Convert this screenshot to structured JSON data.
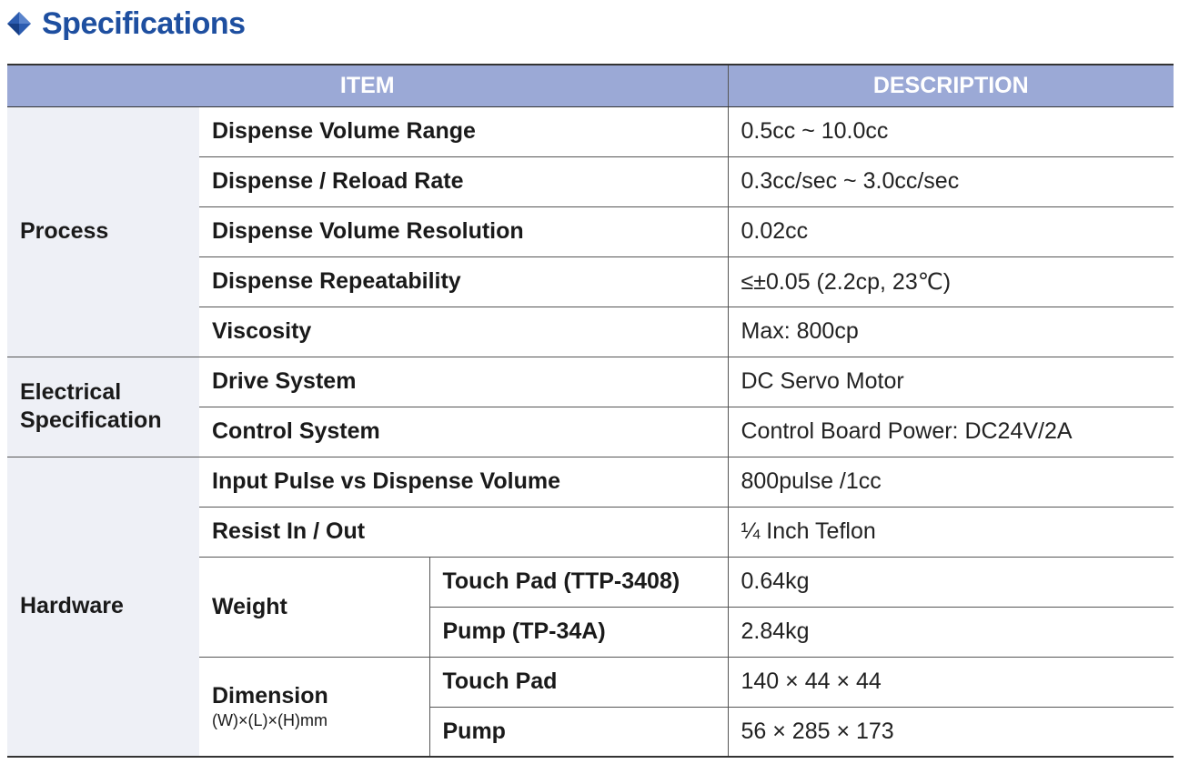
{
  "heading": {
    "title": "Specifications",
    "icon": "diamond-icon",
    "accent_color": "#1e4fa0"
  },
  "table": {
    "header_bg": "#9ba9d6",
    "columns": [
      "ITEM",
      "DESCRIPTION"
    ],
    "groups": [
      {
        "label": "Process",
        "rows": [
          {
            "item": "Dispense Volume Range",
            "desc": "0.5cc ~ 10.0cc"
          },
          {
            "item": "Dispense / Reload Rate",
            "desc": "0.3cc/sec ~ 3.0cc/sec"
          },
          {
            "item": "Dispense Volume Resolution",
            "desc": "0.02cc"
          },
          {
            "item": "Dispense Repeatability",
            "desc": "≤±0.05 (2.2cp, 23℃)"
          },
          {
            "item": "Viscosity",
            "desc": "Max: 800cp"
          }
        ]
      },
      {
        "label_line1": "Electrical",
        "label_line2": "Specification",
        "rows": [
          {
            "item": "Drive System",
            "desc": "DC Servo Motor"
          },
          {
            "item": "Control System",
            "desc": "Control Board Power: DC24V/2A"
          }
        ]
      },
      {
        "label": "Hardware",
        "rows": [
          {
            "item": "Input Pulse vs Dispense Volume",
            "desc": "800pulse /1cc"
          },
          {
            "item": "Resist In / Out",
            "desc": "¼ Inch Teflon"
          }
        ],
        "weight": {
          "label": "Weight",
          "sub": [
            {
              "name": "Touch Pad (TTP-3408)",
              "desc": "0.64kg"
            },
            {
              "name": "Pump (TP-34A)",
              "desc": "2.84kg"
            }
          ]
        },
        "dimension": {
          "label": "Dimension",
          "note": "(W)×(L)×(H)mm",
          "sub": [
            {
              "name": "Touch Pad",
              "desc": "140 × 44 × 44"
            },
            {
              "name": "Pump",
              "desc": "56 × 285 × 173"
            }
          ]
        }
      }
    ]
  }
}
